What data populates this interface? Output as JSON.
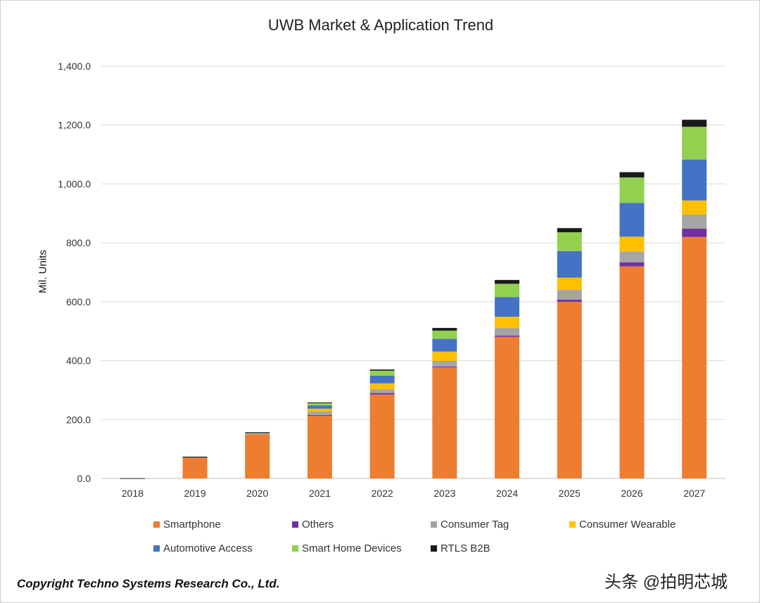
{
  "chart_data": {
    "type": "bar",
    "stacked": true,
    "title": "UWB Market & Application Trend",
    "xlabel": "",
    "ylabel": "Mil. Units",
    "ylim": [
      0,
      1400
    ],
    "yticks": [
      "0.0",
      "200.0",
      "400.0",
      "600.0",
      "800.0",
      "1,000.0",
      "1,200.0",
      "1,400.0"
    ],
    "ytick_values": [
      0,
      200,
      400,
      600,
      800,
      1000,
      1200,
      1400
    ],
    "grid": true,
    "legend_position": "bottom",
    "categories": [
      "2018",
      "2019",
      "2020",
      "2021",
      "2022",
      "2023",
      "2024",
      "2025",
      "2026",
      "2027"
    ],
    "series": [
      {
        "name": "Smartphone",
        "color": "#ED7D31",
        "values": [
          0,
          71,
          150,
          214,
          285,
          378,
          481,
          600,
          720,
          820
        ]
      },
      {
        "name": "Others",
        "color": "#7030A0",
        "values": [
          0,
          0,
          0,
          1,
          5,
          2,
          4,
          7,
          14,
          28
        ]
      },
      {
        "name": "Consumer Tag",
        "color": "#A5A5A5",
        "values": [
          0,
          0,
          1,
          12,
          13,
          19,
          26,
          33,
          37,
          48
        ]
      },
      {
        "name": "Consumer Wearable",
        "color": "#FFC000",
        "values": [
          0,
          0,
          2,
          10,
          20,
          32,
          38,
          42,
          50,
          48
        ]
      },
      {
        "name": "Automotive Access",
        "color": "#4472C4",
        "values": [
          0,
          0,
          2,
          11,
          26,
          43,
          67,
          90,
          115,
          139
        ]
      },
      {
        "name": "Smart Home Devices",
        "color": "#92D050",
        "values": [
          0,
          0,
          0,
          8,
          17,
          28,
          45,
          64,
          86,
          111
        ]
      },
      {
        "name": "RTLS B2B",
        "color": "#1A1A1A",
        "values": [
          1,
          3,
          2,
          2,
          4,
          9,
          13,
          14,
          18,
          24
        ]
      }
    ]
  },
  "footer": {
    "copyright": "Copyright Techno Systems Research Co., Ltd.",
    "watermark": "头条 @拍明芯城"
  }
}
